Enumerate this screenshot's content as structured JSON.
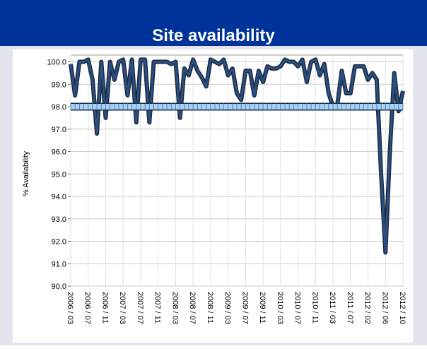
{
  "chart_data": {
    "type": "line",
    "title": "Site availability",
    "ylabel": "% Availability",
    "categories": [
      "2006 / 03",
      null,
      null,
      null,
      "2006 / 07",
      null,
      null,
      null,
      "2006 / 11",
      null,
      null,
      null,
      "2007 / 03",
      null,
      null,
      null,
      "2007 / 07",
      null,
      null,
      null,
      "2007 / 11",
      null,
      null,
      null,
      "2008 / 03",
      null,
      null,
      null,
      "2008 / 07",
      null,
      null,
      null,
      "2008 / 11",
      null,
      null,
      null,
      "2009 / 03",
      null,
      null,
      null,
      "2009 / 07",
      null,
      null,
      null,
      "2009 / 11",
      null,
      null,
      null,
      "2010 / 03",
      null,
      null,
      null,
      "2010 / 07",
      null,
      null,
      null,
      "2010 / 11",
      null,
      null,
      null,
      "2011 / 03",
      null,
      null,
      null,
      "2011 / 07",
      null,
      null,
      null,
      "2012 / 02",
      null,
      null,
      null,
      "2012 / 06",
      null,
      null,
      null,
      "2012 / 10"
    ],
    "series": [
      {
        "color": "#2b4f80",
        "values": [
          99.9,
          98.5,
          100,
          100,
          100.1,
          99.2,
          96.8,
          100,
          97.5,
          100,
          99.2,
          100,
          100.1,
          98.5,
          100.1,
          97.3,
          100.1,
          100.1,
          97.3,
          100,
          100,
          100,
          100,
          99.9,
          100,
          97.5,
          99.7,
          99.4,
          100.1,
          99.6,
          99.3,
          98.9,
          100.1,
          100,
          99.9,
          100.1,
          99.4,
          99.7,
          98.6,
          98.3,
          99.6,
          99.6,
          98.5,
          99.6,
          99.1,
          99.8,
          99.7,
          99.7,
          99.8,
          100.1,
          100,
          100,
          99.8,
          100.1,
          99.1,
          100,
          100.1,
          99.4,
          99.9,
          98.6,
          98.0,
          98.1,
          99.6,
          98.6,
          98.6,
          99.8,
          99.8,
          99.8,
          99.2,
          99.5,
          99.2,
          95,
          91.5,
          96,
          99.5,
          97.8,
          98.7
        ]
      },
      {
        "color": "#a9d0f5",
        "values": [
          98,
          98,
          98,
          98,
          98,
          98,
          98,
          98,
          98,
          98,
          98,
          98,
          98,
          98,
          98,
          98,
          98,
          98,
          98,
          98,
          98,
          98,
          98,
          98,
          98,
          98,
          98,
          98,
          98,
          98,
          98,
          98,
          98,
          98,
          98,
          98,
          98,
          98,
          98,
          98,
          98,
          98,
          98,
          98,
          98,
          98,
          98,
          98,
          98,
          98,
          98,
          98,
          98,
          98,
          98,
          98,
          98,
          98,
          98,
          98,
          98,
          98,
          98,
          98,
          98,
          98,
          98,
          98,
          98,
          98,
          98,
          98,
          98,
          98,
          98,
          98,
          98
        ]
      }
    ],
    "ylim": [
      90,
      100.3
    ],
    "yticks": [
      {
        "value": 90,
        "label": "90.0"
      },
      {
        "value": 91,
        "label": "91.0"
      },
      {
        "value": 92,
        "label": "92.0"
      },
      {
        "value": 93,
        "label": "93.0"
      },
      {
        "value": 94,
        "label": "94.0"
      },
      {
        "value": 95,
        "label": "95.0"
      },
      {
        "value": 96,
        "label": "96.0"
      },
      {
        "value": 97,
        "label": "97.0"
      },
      {
        "value": 98,
        "label": "98.0"
      },
      {
        "value": 99,
        "label": "99.0"
      },
      {
        "value": 100,
        "label": "100.0"
      }
    ],
    "grid": true
  }
}
